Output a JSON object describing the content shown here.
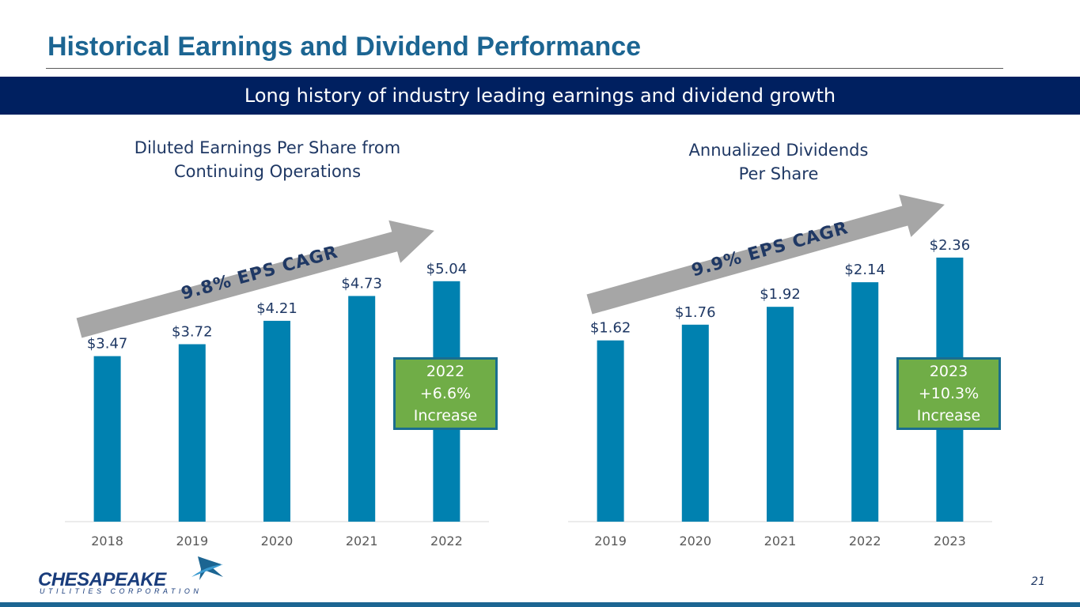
{
  "slide": {
    "title": "Historical Earnings and Dividend Performance",
    "subtitle": "Long history of industry leading earnings and dividend growth",
    "page_number": "21"
  },
  "logo": {
    "name": "CHESAPEAKE",
    "tagline": "UTILITIES CORPORATION"
  },
  "colors": {
    "bar": "#0081b0",
    "arrow": "#a6a6a6",
    "callout_fill": "#70ad47",
    "callout_border": "#1a6e8f",
    "title": "#1c6592",
    "banner": "#002060"
  },
  "chart_data": [
    {
      "type": "bar",
      "title": "Diluted Earnings Per Share from\nContinuing Operations",
      "categories": [
        "2018",
        "2019",
        "2020",
        "2021",
        "2022"
      ],
      "values": [
        3.47,
        3.72,
        4.21,
        4.73,
        5.04
      ],
      "value_labels": [
        "$3.47",
        "$3.72",
        "$4.21",
        "$4.73",
        "$5.04"
      ],
      "ylim": [
        0,
        5.7
      ],
      "xlabel": "",
      "ylabel": "",
      "grid": false,
      "arrow_label": "9.8% EPS CAGR",
      "callout": [
        "2022",
        "+6.6%",
        "Increase"
      ]
    },
    {
      "type": "bar",
      "title": "Annualized Dividends\nPer Share",
      "categories": [
        "2019",
        "2020",
        "2021",
        "2022",
        "2023"
      ],
      "values": [
        1.62,
        1.76,
        1.92,
        2.14,
        2.36
      ],
      "value_labels": [
        "$1.62",
        "$1.76",
        "$1.92",
        "$2.14",
        "$2.36"
      ],
      "ylim": [
        0,
        2.43
      ],
      "xlabel": "",
      "ylabel": "",
      "grid": false,
      "arrow_label": "9.9% EPS CAGR",
      "callout": [
        "2023",
        "+10.3%",
        "Increase"
      ]
    }
  ]
}
